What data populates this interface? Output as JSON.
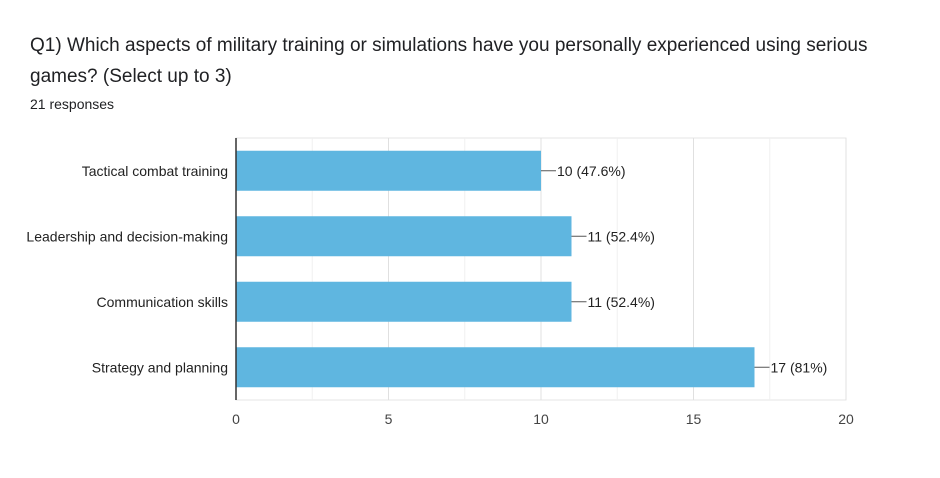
{
  "question": {
    "title": "Q1) Which aspects of military training or simulations have you personally experienced using serious games?  (Select up to 3)",
    "responses": "21 responses"
  },
  "chart_data": {
    "type": "bar",
    "orientation": "horizontal",
    "categories": [
      "Tactical combat training",
      "Leadership and decision-making",
      "Communication skills",
      "Strategy and planning"
    ],
    "values": [
      10,
      11,
      11,
      17
    ],
    "data_labels": [
      "10 (47.6%)",
      "11 (52.4%)",
      "11 (52.4%)",
      "17 (81%)"
    ],
    "xlim": [
      0,
      20
    ],
    "xticks": [
      0,
      5,
      10,
      15,
      20
    ],
    "grid": true,
    "legend": "none",
    "bar_color": "#5fb6e0",
    "title": "",
    "xlabel": "",
    "ylabel": ""
  }
}
